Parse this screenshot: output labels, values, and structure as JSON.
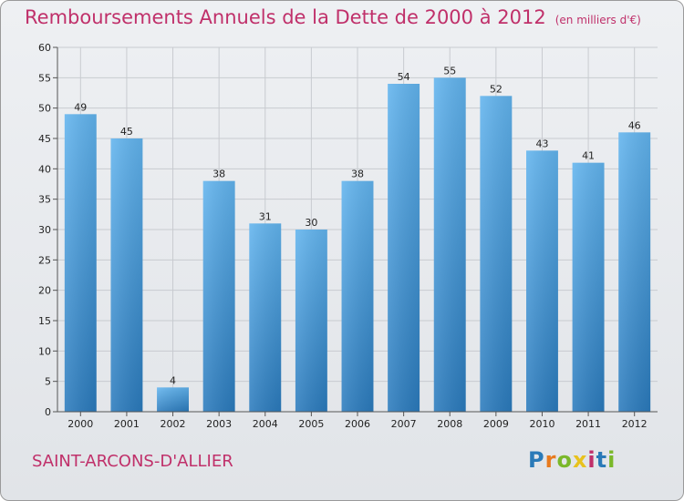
{
  "title": "Remboursements Annuels de la Dette de 2000 à 2012",
  "unit": "(en milliers d'€)",
  "town": "SAINT-ARCONS-D'ALLIER",
  "logo": {
    "letters": [
      "P",
      "r",
      "o",
      "x",
      "i",
      "t",
      "i"
    ],
    "colors": [
      "#2a7ab8",
      "#e87a1e",
      "#7ab82a",
      "#e8c21e",
      "#c0306a",
      "#2a7ab8",
      "#7ab82a"
    ]
  },
  "colors": {
    "bar_top": "#62b4ee",
    "bar_bottom": "#2b7bbd",
    "grid": "#c8cbd0",
    "title": "#c0306a"
  },
  "chart_data": {
    "type": "bar",
    "categories": [
      "2000",
      "2001",
      "2002",
      "2003",
      "2004",
      "2005",
      "2006",
      "2007",
      "2008",
      "2009",
      "2010",
      "2011",
      "2012"
    ],
    "values": [
      49,
      45,
      4,
      38,
      31,
      30,
      38,
      54,
      55,
      52,
      43,
      41,
      46
    ],
    "title": "Remboursements Annuels de la Dette de 2000 à 2012",
    "ylim": [
      0,
      60
    ],
    "yticks": [
      0,
      5,
      10,
      15,
      20,
      25,
      30,
      35,
      40,
      45,
      50,
      55,
      60
    ],
    "grid": true
  }
}
